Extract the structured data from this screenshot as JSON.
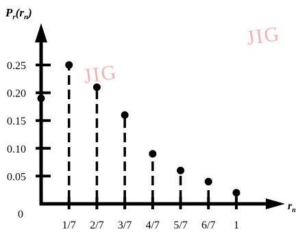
{
  "watermarks": [
    "JIG",
    "JIG"
  ],
  "chart_data": {
    "type": "stem",
    "x_tick_labels": [
      "1/7",
      "2/7",
      "3/7",
      "4/7",
      "5/7",
      "6/7",
      "1"
    ],
    "x_origin_label": "0",
    "x": [
      0,
      0.1429,
      0.2857,
      0.4286,
      0.5714,
      0.7143,
      0.8571,
      1
    ],
    "y": [
      0.19,
      0.25,
      0.21,
      0.16,
      0.09,
      0.06,
      0.04,
      0.02
    ],
    "y_tick_values": [
      0.05,
      0.1,
      0.15,
      0.2,
      0.25
    ],
    "y_tick_labels": [
      "0.05",
      "0.10",
      "0.15",
      "0.20",
      "0.25"
    ],
    "ylim": [
      0,
      0.3
    ],
    "xlim": [
      0,
      1
    ],
    "xlabel": "r_n",
    "ylabel": "P_r(r_n)",
    "grid": false,
    "stem_style": "dashed",
    "colors": {
      "ink": "#000000",
      "watermark": "#f19a9a"
    }
  }
}
